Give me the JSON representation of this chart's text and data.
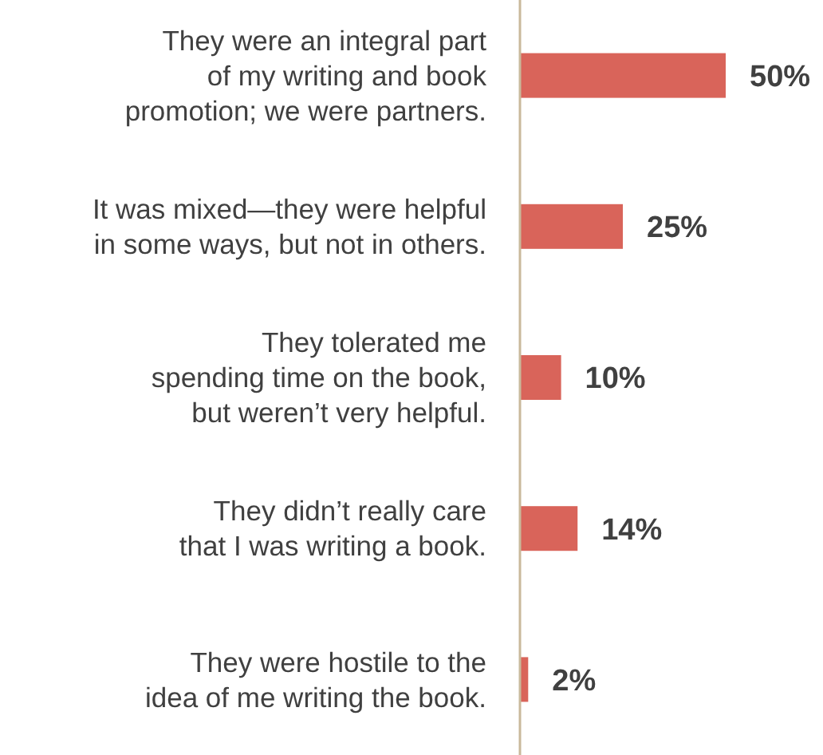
{
  "chart_data": {
    "type": "bar",
    "orientation": "horizontal",
    "categories": [
      "They were an integral part\nof my writing and book\npromotion; we were partners.",
      "It was mixed—they were helpful\nin some ways, but not in others.",
      "They tolerated me\nspending time on the book,\nbut weren’t very helpful.",
      "They didn’t really care\nthat I was writing a book.",
      "They were hostile to the\nidea of me writing the book."
    ],
    "values": [
      50,
      25,
      10,
      14,
      2
    ],
    "value_labels": [
      "50%",
      "25%",
      "10%",
      "14%",
      "2%"
    ],
    "color": "#d9645a"
  }
}
